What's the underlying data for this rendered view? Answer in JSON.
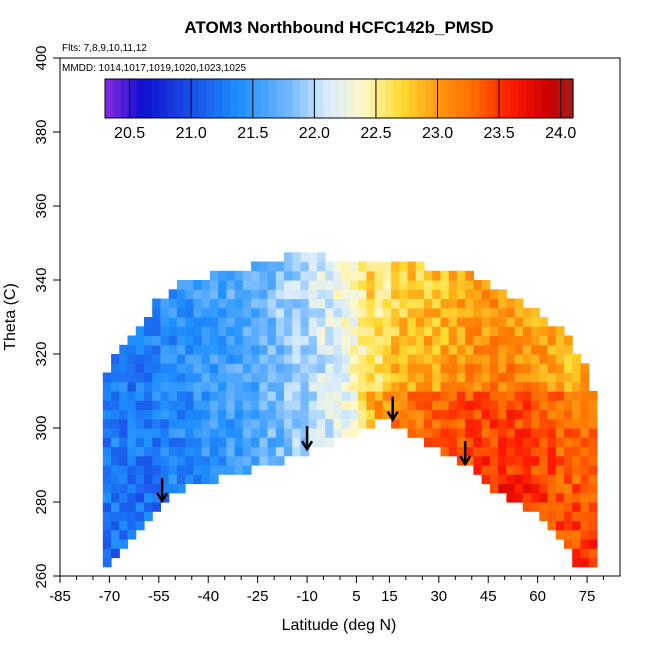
{
  "chart_data": {
    "type": "heatmap",
    "title": "ATOM3 Northbound HCFC142b_PMSD",
    "subtitle_lines": [
      "Flts: 7,8,9,10,11,12",
      "MMDD: 1014,1017,1019,1020,1023,1025"
    ],
    "xlabel": "Latitude (deg N)",
    "ylabel": "Theta (C)",
    "xlim": [
      -85,
      85
    ],
    "ylim": [
      260,
      400
    ],
    "x_ticks": [
      -85,
      -70,
      -55,
      -40,
      -25,
      -10,
      5,
      15,
      30,
      45,
      60,
      75
    ],
    "y_ticks": [
      260,
      280,
      300,
      320,
      340,
      360,
      380,
      400
    ],
    "colorbar": {
      "range": [
        20.3,
        24.1
      ],
      "ticks": [
        20.5,
        21.0,
        21.5,
        22.0,
        22.5,
        23.0,
        23.5,
        24.0
      ],
      "tick_labels": [
        "20.5",
        "21.0",
        "21.5",
        "22.0",
        "22.5",
        "23.0",
        "23.5",
        "24.0"
      ],
      "stops": [
        {
          "v": 20.3,
          "c": "#8a2be2"
        },
        {
          "v": 20.6,
          "c": "#1010d0"
        },
        {
          "v": 21.0,
          "c": "#1a4ee6"
        },
        {
          "v": 21.4,
          "c": "#1e90ff"
        },
        {
          "v": 21.8,
          "c": "#73b8ff"
        },
        {
          "v": 22.1,
          "c": "#d8ecff"
        },
        {
          "v": 22.4,
          "c": "#fff8c8"
        },
        {
          "v": 22.7,
          "c": "#ffdd33"
        },
        {
          "v": 23.0,
          "c": "#ff9a10"
        },
        {
          "v": 23.3,
          "c": "#ff6a00"
        },
        {
          "v": 23.6,
          "c": "#ff1a00"
        },
        {
          "v": 23.9,
          "c": "#cc0000"
        },
        {
          "v": 24.1,
          "c": "#a51d1d"
        }
      ]
    },
    "field": {
      "lat_range": [
        -72,
        78
      ],
      "lower_boundary": [
        [
          -72,
          262
        ],
        [
          -68,
          266
        ],
        [
          -62,
          272
        ],
        [
          -56,
          278
        ],
        [
          -54,
          280
        ],
        [
          -50,
          283
        ],
        [
          -45,
          285
        ],
        [
          -38,
          286
        ],
        [
          -30,
          288
        ],
        [
          -22,
          290
        ],
        [
          -15,
          292
        ],
        [
          -10,
          294
        ],
        [
          -3,
          296
        ],
        [
          3,
          298
        ],
        [
          8,
          300
        ],
        [
          12,
          303
        ],
        [
          15,
          303
        ],
        [
          18,
          300
        ],
        [
          25,
          296
        ],
        [
          30,
          294
        ],
        [
          38,
          290
        ],
        [
          45,
          285
        ],
        [
          52,
          280
        ],
        [
          60,
          276
        ],
        [
          66,
          270
        ],
        [
          70,
          266
        ],
        [
          73,
          262
        ],
        [
          78,
          262
        ]
      ],
      "upper_boundary": [
        [
          -72,
          312
        ],
        [
          -68,
          318
        ],
        [
          -62,
          325
        ],
        [
          -56,
          333
        ],
        [
          -48,
          338
        ],
        [
          -40,
          340
        ],
        [
          -30,
          342
        ],
        [
          -20,
          344
        ],
        [
          -10,
          347
        ],
        [
          0,
          344
        ],
        [
          10,
          343
        ],
        [
          20,
          343
        ],
        [
          30,
          342
        ],
        [
          40,
          340
        ],
        [
          50,
          335
        ],
        [
          60,
          330
        ],
        [
          68,
          325
        ],
        [
          74,
          316
        ],
        [
          78,
          305
        ]
      ],
      "profile": [
        [
          -72,
          21.3
        ],
        [
          -62,
          21.25
        ],
        [
          -50,
          21.35
        ],
        [
          -38,
          21.5
        ],
        [
          -25,
          21.65
        ],
        [
          -15,
          21.85
        ],
        [
          -5,
          22.05
        ],
        [
          5,
          22.3
        ],
        [
          12,
          22.8
        ],
        [
          20,
          23.0
        ],
        [
          30,
          23.05
        ],
        [
          40,
          23.2
        ],
        [
          50,
          23.25
        ],
        [
          60,
          23.15
        ],
        [
          70,
          23.0
        ],
        [
          78,
          23.05
        ]
      ]
    },
    "flight_markers_lat": [
      -54,
      -10,
      16,
      38
    ]
  }
}
